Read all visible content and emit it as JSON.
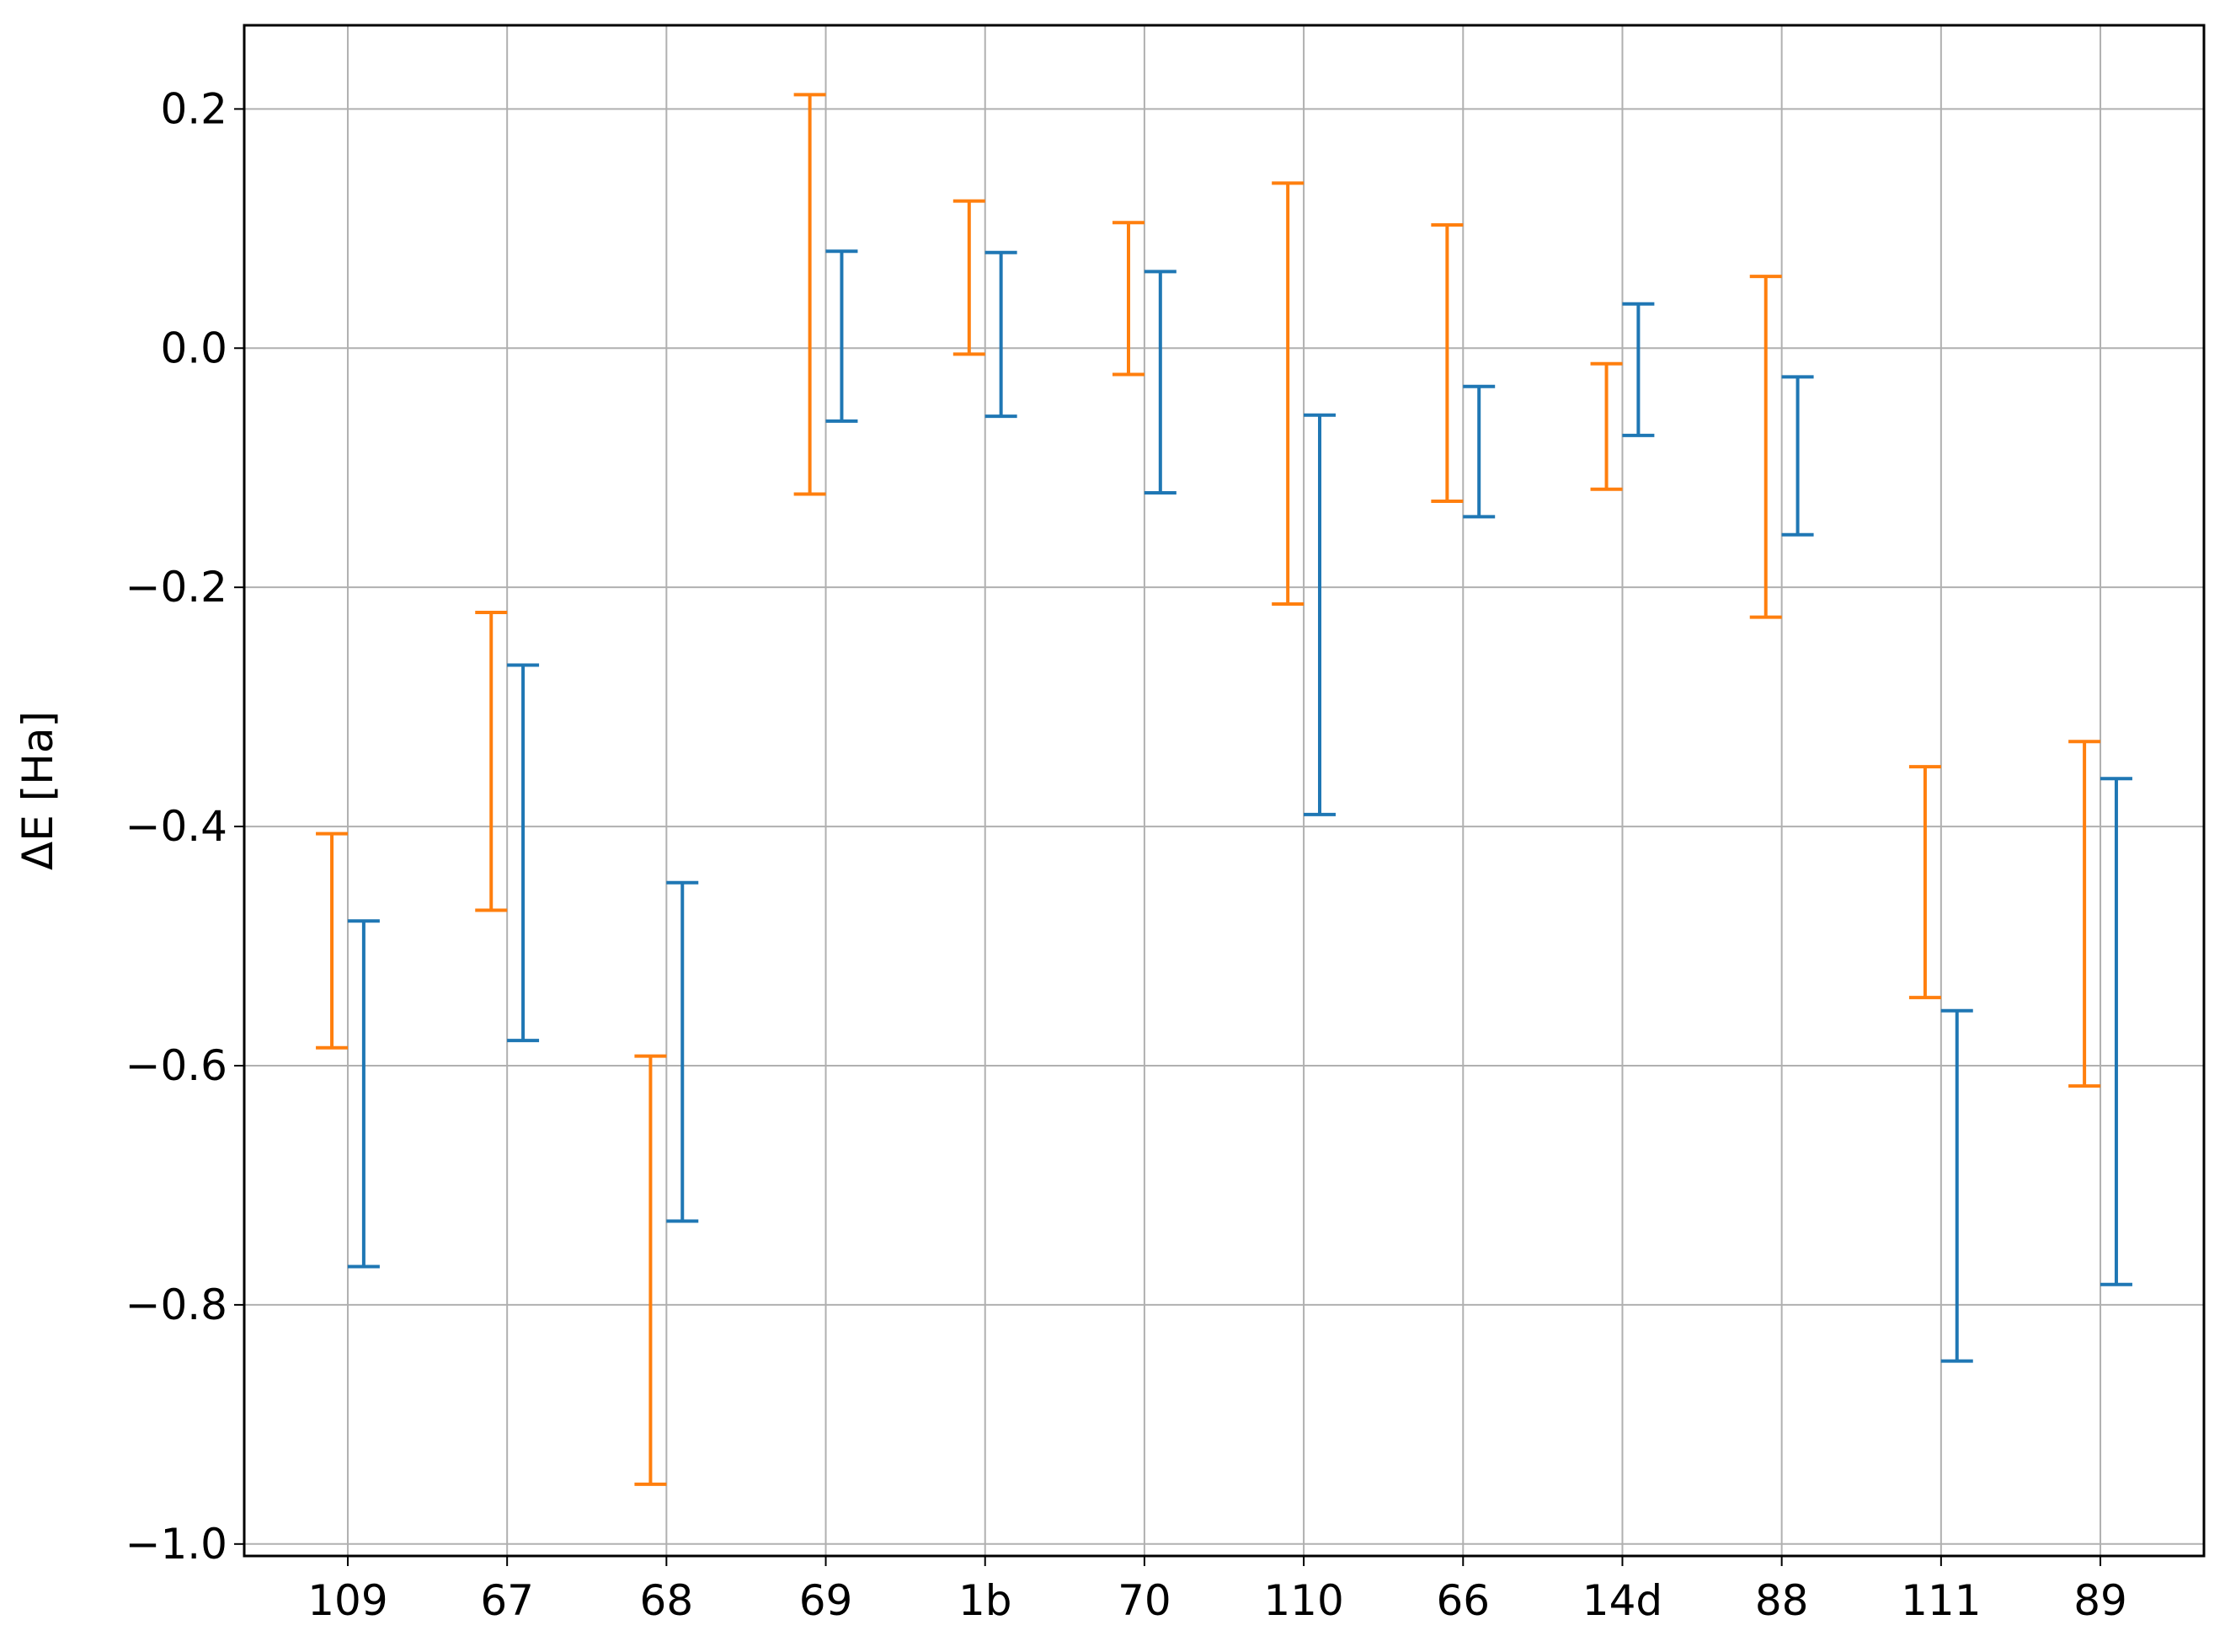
{
  "chart_data": {
    "type": "errorbar",
    "ylabel": "ΔE [Ha]",
    "xlabel": "",
    "title": "",
    "categories": [
      "109",
      "67",
      "68",
      "69",
      "1b",
      "70",
      "110",
      "66",
      "14d",
      "88",
      "111",
      "89"
    ],
    "ylim": [
      -1.01,
      0.27
    ],
    "yticks": [
      -1.0,
      -0.8,
      -0.6,
      -0.4,
      -0.2,
      0.0,
      0.2
    ],
    "ytick_labels": [
      "−1.0",
      "−0.8",
      "−0.6",
      "−0.4",
      "−0.2",
      "0.0",
      "0.2"
    ],
    "grid": true,
    "series": [
      {
        "color": "#ff7f0e",
        "offset": -0.1,
        "low": [
          -0.585,
          -0.47,
          -0.95,
          -0.122,
          -0.005,
          -0.022,
          -0.214,
          -0.128,
          -0.118,
          -0.225,
          -0.543,
          -0.617
        ],
        "high": [
          -0.406,
          -0.221,
          -0.592,
          0.212,
          0.123,
          0.105,
          0.138,
          0.103,
          -0.013,
          0.06,
          -0.35,
          -0.329
        ]
      },
      {
        "color": "#1f77b4",
        "offset": 0.1,
        "low": [
          -0.768,
          -0.579,
          -0.73,
          -0.061,
          -0.057,
          -0.121,
          -0.39,
          -0.141,
          -0.073,
          -0.156,
          -0.847,
          -0.783
        ],
        "high": [
          -0.479,
          -0.265,
          -0.447,
          0.081,
          0.08,
          0.064,
          -0.056,
          -0.032,
          0.037,
          -0.024,
          -0.554,
          -0.36
        ]
      }
    ]
  }
}
